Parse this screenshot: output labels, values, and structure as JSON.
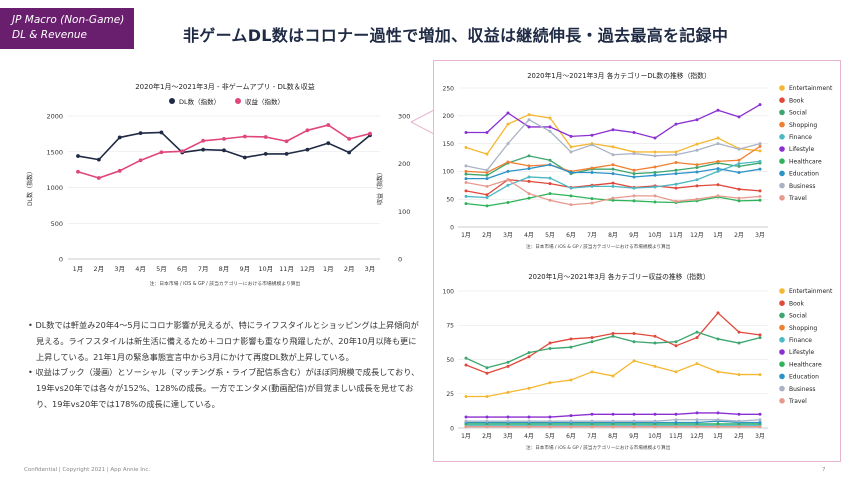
{
  "badge": {
    "line1": "JP Macro (Non-Game)",
    "line2": "DL & Revenue"
  },
  "headline": "非ゲームDL数はコロナー過性で増加、収益は継続伸長・過去最高を記録中",
  "months": [
    "1月",
    "2月",
    "3月",
    "4月",
    "5月",
    "6月",
    "7月",
    "8月",
    "9月",
    "10月",
    "11月",
    "12月",
    "1月",
    "2月",
    "3月"
  ],
  "chart_data": [
    {
      "type": "line",
      "title": "2020年1月～2021年3月 - 非ゲームアプリ - DL数＆収益",
      "note": "注：日本市場 / iOS & GP / 該当カテゴリーにおける市場規模より算出",
      "ylabel": "DL数（指数）",
      "y2label": "収益（指数）",
      "ylim": [
        0,
        2000
      ],
      "yticks": [
        0,
        500,
        1000,
        1500,
        2000
      ],
      "y2lim": [
        0,
        300
      ],
      "y2ticks": [
        0,
        100,
        200,
        300
      ],
      "series": [
        {
          "name": "DL数（指数）",
          "color": "#1f2a44",
          "axis": "left",
          "values": [
            1440,
            1390,
            1700,
            1760,
            1770,
            1490,
            1530,
            1520,
            1420,
            1470,
            1470,
            1530,
            1620,
            1490,
            1730
          ]
        },
        {
          "name": "収益（指数）",
          "color": "#e0457b",
          "axis": "right",
          "values": [
            183,
            170,
            185,
            207,
            224,
            226,
            248,
            252,
            257,
            256,
            247,
            270,
            281,
            252,
            263
          ]
        }
      ]
    },
    {
      "type": "line",
      "title": "2020年1月～2021年3月 各カテゴリーDL数の推移（指数）",
      "note": "注：日本市場 / iOS & GP / 該当カテゴリーにおける市場規模より算出",
      "ylim": [
        0,
        250
      ],
      "yticks": [
        0,
        50,
        100,
        150,
        200,
        250
      ],
      "series": [
        {
          "name": "Entertainment",
          "color": "#f5b731",
          "values": [
            143,
            131,
            185,
            202,
            196,
            144,
            150,
            144,
            135,
            135,
            135,
            149,
            160,
            141,
            137
          ]
        },
        {
          "name": "Book",
          "color": "#e0483a",
          "values": [
            65,
            58,
            85,
            82,
            78,
            71,
            75,
            79,
            71,
            74,
            70,
            74,
            76,
            68,
            65
          ]
        },
        {
          "name": "Social",
          "color": "#3da66e",
          "values": [
            95,
            93,
            115,
            128,
            120,
            96,
            104,
            104,
            96,
            98,
            102,
            107,
            115,
            109,
            115
          ]
        },
        {
          "name": "Shopping",
          "color": "#f07f31",
          "values": [
            100,
            98,
            117,
            110,
            112,
            100,
            106,
            112,
            102,
            108,
            116,
            112,
            118,
            120,
            145
          ]
        },
        {
          "name": "Finance",
          "color": "#4bb8c4",
          "values": [
            55,
            53,
            75,
            90,
            88,
            70,
            73,
            73,
            70,
            72,
            77,
            85,
            100,
            114,
            118
          ]
        },
        {
          "name": "Lifestyle",
          "color": "#8a2fd1",
          "values": [
            170,
            170,
            205,
            180,
            180,
            163,
            165,
            175,
            170,
            160,
            185,
            193,
            210,
            198,
            220
          ]
        },
        {
          "name": "Healthcare",
          "color": "#2fb35a",
          "values": [
            42,
            38,
            44,
            52,
            60,
            56,
            51,
            48,
            47,
            45,
            44,
            47,
            54,
            47,
            48
          ]
        },
        {
          "name": "Education",
          "color": "#2b93c7",
          "values": [
            87,
            87,
            100,
            105,
            112,
            98,
            98,
            96,
            90,
            93,
            96,
            99,
            105,
            98,
            104
          ]
        },
        {
          "name": "Business",
          "color": "#a9b3c5",
          "values": [
            110,
            102,
            150,
            193,
            172,
            135,
            148,
            130,
            132,
            128,
            130,
            138,
            150,
            140,
            150
          ]
        },
        {
          "name": "Travel",
          "color": "#e89a8e",
          "values": [
            80,
            73,
            85,
            60,
            48,
            40,
            43,
            52,
            56,
            56,
            46,
            50,
            56,
            52,
            55
          ]
        }
      ]
    },
    {
      "type": "line",
      "title": "2020年1月～2021年3月 各カテゴリー収益の推移（指数）",
      "note": "注：日本市場 / iOS & GP / 該当カテゴリーにおける市場規模より算出",
      "ylim": [
        0,
        100
      ],
      "yticks": [
        0,
        25,
        50,
        75,
        100
      ],
      "series": [
        {
          "name": "Entertainment",
          "color": "#f5b731",
          "values": [
            23,
            23,
            26,
            29,
            33,
            35,
            41,
            38,
            49,
            45,
            41,
            47,
            41,
            39,
            39
          ]
        },
        {
          "name": "Book",
          "color": "#e0483a",
          "values": [
            46,
            40,
            45,
            52,
            62,
            65,
            66,
            69,
            69,
            67,
            60,
            66,
            84,
            70,
            68
          ]
        },
        {
          "name": "Social",
          "color": "#3da66e",
          "values": [
            51,
            44,
            48,
            55,
            58,
            59,
            63,
            67,
            63,
            62,
            63,
            70,
            65,
            62,
            66
          ]
        },
        {
          "name": "Shopping",
          "color": "#f07f31",
          "values": [
            1,
            1,
            1,
            1,
            1,
            1,
            1,
            1,
            1,
            1,
            1,
            1,
            1,
            1,
            1
          ]
        },
        {
          "name": "Finance",
          "color": "#4bb8c4",
          "values": [
            2,
            2,
            2,
            2,
            2,
            2,
            2,
            2,
            2,
            2,
            2,
            2,
            2,
            2,
            2
          ]
        },
        {
          "name": "Lifestyle",
          "color": "#8a2fd1",
          "values": [
            8,
            8,
            8,
            8,
            8,
            9,
            10,
            10,
            10,
            10,
            10,
            11,
            11,
            10,
            10
          ]
        },
        {
          "name": "Healthcare",
          "color": "#2fb35a",
          "values": [
            3,
            3,
            3,
            3,
            3,
            3,
            3,
            3,
            3,
            3,
            3,
            3,
            3,
            3,
            3
          ]
        },
        {
          "name": "Education",
          "color": "#2b93c7",
          "values": [
            4,
            4,
            4,
            4,
            4,
            4,
            4,
            4,
            4,
            4,
            4,
            4,
            5,
            4,
            4
          ]
        },
        {
          "name": "Business",
          "color": "#a9b3c5",
          "values": [
            5,
            5,
            5,
            5,
            5,
            5,
            5,
            5,
            5,
            5,
            6,
            6,
            6,
            5,
            6
          ]
        },
        {
          "name": "Travel",
          "color": "#e89a8e",
          "values": [
            1,
            1,
            1,
            1,
            1,
            1,
            1,
            1,
            1,
            1,
            1,
            1,
            1,
            1,
            1
          ]
        }
      ]
    }
  ],
  "bullets": [
    "DL数では軒並み20年4～5月にコロナ影響が見えるが、特にライフスタイルとショッピングは上昇傾向が見える。ライフスタイルは新生活に備えるため＋コロナ影響も重なり飛躍したが、20年10月以降も更に上昇している。21年1月の緊急事態宣言中から3月にかけて再度DL数が上昇している。",
    "収益はブック（漫画）とソーシャル（マッチング系・ライブ配信系含む）がほぼ同規模で成長しており、19年vs20年では各々が152%、128%の成長。一方でエンタメ(動画配信)が目覚ましい成長を見せており、19年vs20年では178%の成長に達している。"
  ],
  "footer": "Confidential  |  Copyright 2021  |  App Annie Inc.",
  "page_number": "7"
}
